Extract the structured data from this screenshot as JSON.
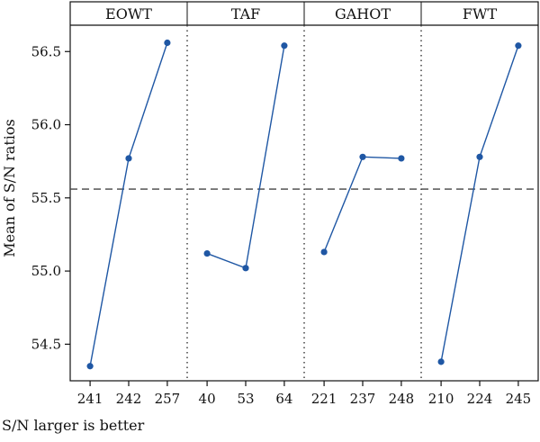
{
  "chart_data": {
    "type": "line",
    "ylabel": "Mean of  S/N ratios",
    "xlabel": "S/N larger is better",
    "ylim": [
      54.25,
      56.68
    ],
    "yticks": [
      "54.5",
      "55.0",
      "55.5",
      "56.0",
      "56.5"
    ],
    "reference_line": 55.56,
    "grid": false,
    "colors": {
      "line": "#1f57a4",
      "marker": "#1f57a4",
      "reference": "#444444"
    },
    "panels": [
      {
        "name": "EOWT",
        "x": [
          "241",
          "242",
          "257"
        ],
        "values": [
          54.35,
          55.77,
          56.56
        ]
      },
      {
        "name": "TAF",
        "x": [
          "40",
          "53",
          "64"
        ],
        "values": [
          55.12,
          55.02,
          56.54
        ]
      },
      {
        "name": "GAHOT",
        "x": [
          "221",
          "237",
          "248"
        ],
        "values": [
          55.13,
          55.78,
          55.77
        ]
      },
      {
        "name": "FWT",
        "x": [
          "210",
          "224",
          "245"
        ],
        "values": [
          54.38,
          55.78,
          56.54
        ]
      }
    ]
  }
}
